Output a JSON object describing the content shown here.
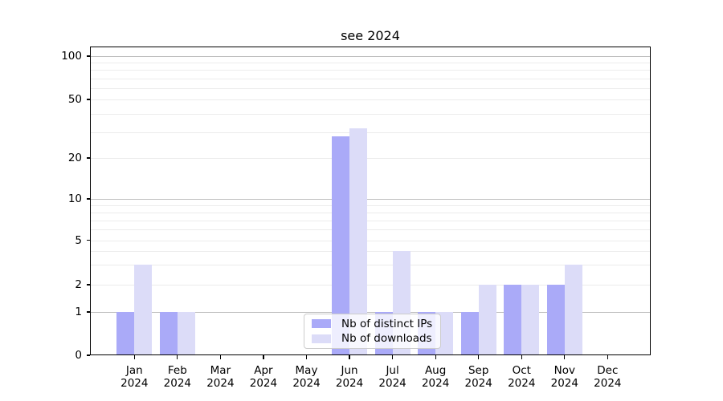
{
  "chart_data": {
    "type": "bar",
    "title": "see 2024",
    "categories": [
      "Jan",
      "Feb",
      "Mar",
      "Apr",
      "May",
      "Jun",
      "Jul",
      "Aug",
      "Sep",
      "Oct",
      "Nov",
      "Dec"
    ],
    "year_label": "2024",
    "series": [
      {
        "name": "Nb of distinct IPs",
        "color": "#aaaaf8",
        "values": [
          1,
          1,
          0,
          0,
          0,
          28,
          1,
          1,
          1,
          2,
          2,
          0
        ]
      },
      {
        "name": "Nb of downloads",
        "color": "#dcdcf8",
        "values": [
          3,
          1,
          0,
          0,
          0,
          32,
          4,
          1,
          2,
          2,
          3,
          0
        ]
      }
    ],
    "xlabel": "",
    "ylabel": "",
    "yticks": [
      0,
      1,
      2,
      5,
      10,
      20,
      50,
      100
    ],
    "major_gridlines": [
      1,
      10,
      100
    ],
    "minor_gridlines": [
      2,
      3,
      4,
      5,
      6,
      7,
      8,
      9,
      20,
      30,
      40,
      50,
      60,
      70,
      80,
      90
    ],
    "ylim": [
      0,
      117
    ],
    "grid": true,
    "scale_note": "quasi-log y axis with compressed segment below 5 and linear 0-1 segment",
    "legend_position": "inside lower-center"
  },
  "colors": {
    "bar_distinct_ips": "#aaaaf8",
    "bar_downloads": "#dcdcf8",
    "grid_minor": "#ececec",
    "grid_major": "#bdbdbd",
    "axis": "#000000",
    "background": "#ffffff"
  }
}
